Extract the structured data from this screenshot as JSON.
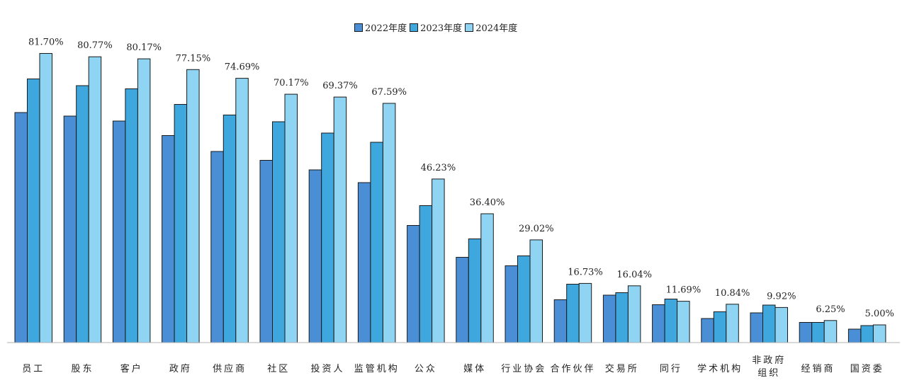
{
  "chart_data": {
    "type": "bar",
    "categories": [
      "员工",
      "股东",
      "客户",
      "政府",
      "供应商",
      "社区",
      "投资人",
      "监管机构",
      "公众",
      "媒体",
      "行业协会",
      "合作伙伴",
      "交易所",
      "同行",
      "学术机构",
      "非政府组织",
      "经销商",
      "国资委"
    ],
    "category_lines": [
      [
        "员工"
      ],
      [
        "股东"
      ],
      [
        "客户"
      ],
      [
        "政府"
      ],
      [
        "供应商"
      ],
      [
        "社区"
      ],
      [
        "投资人"
      ],
      [
        "监管机构"
      ],
      [
        "公众"
      ],
      [
        "媒体"
      ],
      [
        "行业协会"
      ],
      [
        "合作伙伴"
      ],
      [
        "交易所"
      ],
      [
        "同行"
      ],
      [
        "学术机构"
      ],
      [
        "非政府",
        "组织"
      ],
      [
        "经销商"
      ],
      [
        "国资委"
      ]
    ],
    "series": [
      {
        "name": "2022年度",
        "color": "#4a8fd6",
        "values": [
          65.0,
          64.0,
          62.6,
          58.5,
          54.0,
          51.5,
          48.8,
          45.2,
          33.1,
          24.1,
          21.7,
          12.1,
          13.4,
          10.7,
          6.8,
          8.4,
          5.7,
          3.8
        ]
      },
      {
        "name": "2023年度",
        "color": "#3ea8de",
        "values": [
          74.5,
          72.6,
          71.7,
          67.3,
          64.3,
          62.4,
          59.2,
          56.6,
          38.7,
          29.3,
          24.5,
          16.5,
          14.1,
          12.3,
          8.7,
          10.6,
          5.7,
          4.8
        ]
      },
      {
        "name": "2024年度",
        "color": "#8fd5f3",
        "values": [
          81.7,
          80.77,
          80.17,
          77.15,
          74.69,
          70.17,
          69.37,
          67.59,
          46.23,
          36.4,
          29.02,
          16.73,
          16.04,
          11.69,
          10.84,
          9.92,
          6.25,
          5.0
        ]
      }
    ],
    "data_labels": [
      "81.70%",
      "80.77%",
      "80.17%",
      "77.15%",
      "74.69%",
      "70.17%",
      "69.37%",
      "67.59%",
      "46.23%",
      "36.40%",
      "29.02%",
      "16.73%",
      "16.04%",
      "11.69%",
      "10.84%",
      "9.92%",
      "6.25%",
      "5.00%"
    ],
    "data_labels_series": "2024年度",
    "ylim": [
      0,
      100
    ],
    "grid": false,
    "legend_position": "top-center",
    "title": "",
    "xlabel": "",
    "ylabel": ""
  }
}
